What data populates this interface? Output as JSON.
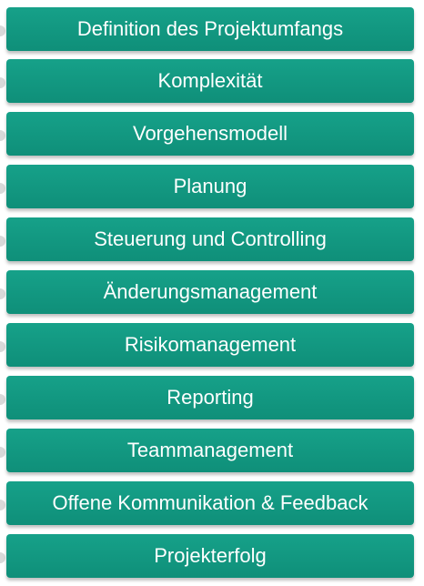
{
  "steps": [
    "Definition des Projektumfangs",
    "Komplexität",
    "Vorgehensmodell",
    "Planung",
    "Steuerung und Controlling",
    "Änderungsmanagement",
    "Risikomanagement",
    "Reporting",
    "Teammanagement",
    "Offene Kommunikation & Feedback",
    "Projekterfolg"
  ],
  "colors": {
    "box": "#0f8f79",
    "text": "#ffffff",
    "connector": "#d9d9d9"
  }
}
